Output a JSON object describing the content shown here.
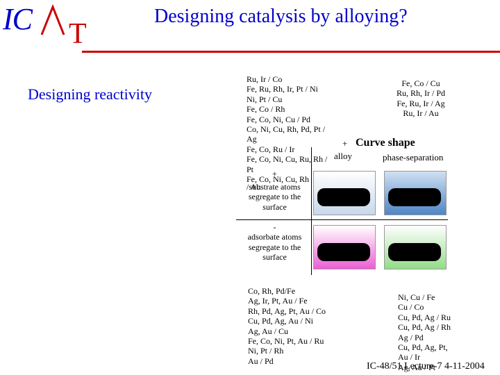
{
  "logo": {
    "ic": "IC",
    "caret": "^",
    "t": "T"
  },
  "title": "Designing catalysis by alloying?",
  "subtitle": "Designing reactivity",
  "top_left_list": [
    "Ru, Ir / Co",
    "Fe, Ru, Rh, Ir, Pt / Ni",
    "Ni, Pt / Cu",
    "Fe, Co / Rh",
    "Fe, Co, Ni, Cu / Pd",
    "Co, Ni, Cu, Rh, Pd, Pt /",
    "Ag",
    "Fe, Co, Ru / Ir",
    "Fe, Co, Ni, Cu, Ru, Rh /",
    "Pt",
    "Fe, Co, Ni, Cu, Rh"
  ],
  "top_right_list": [
    "Fe, Co / Cu",
    "Ru, Rh, Ir / Pd",
    "Fe, Ru, Ir / Ag",
    "Ru, Ir / Au"
  ],
  "plus_sign": "+",
  "plus_sign_small": "+",
  "curve_shape": "Curve shape",
  "alloy": "alloy",
  "phase_separation": "phase-separation",
  "row1_label": "substrate atoms segregate to the surface",
  "row1_label_lines": [
    "substrate atoms",
    "segregate to the",
    "surface"
  ],
  "au_fragment": "/ Au",
  "row2_prefix": "-",
  "row2_label_lines": [
    "adsorbate atoms",
    "segregate to the",
    "surface"
  ],
  "bottom_left_list": [
    "Co, Rh, Pd/Fe",
    "Ag, Ir, Pt, Au / Fe",
    "Rh, Pd, Ag, Pt, Au / Co",
    "Cu, Pd, Ag, Au / Ni",
    "Ag, Au / Cu",
    "Fe, Co, Ni, Pt, Au / Ru",
    "Ni, Pt / Rh",
    "Au / Pd"
  ],
  "bottom_right_list": [
    "Ni, Cu / Fe",
    "Cu / Co",
    "Cu, Pd, Ag / Ru",
    "Cu, Pd, Ag / Rh",
    "Ag / Pd",
    "Cu, Pd, Ag, Pt,",
    "Au / Ir",
    "Ag, Au / Pt"
  ],
  "footer": "IC-48/51 Lecture-7 4-11-2004",
  "colors": {
    "title_blue": "#0000cc",
    "logo_red": "#cc0000",
    "cell_tl": "#d9e6f2",
    "cell_tr": "#6fa0d0",
    "cell_bl": "#f06ad8",
    "cell_br": "#a9e3a0"
  }
}
